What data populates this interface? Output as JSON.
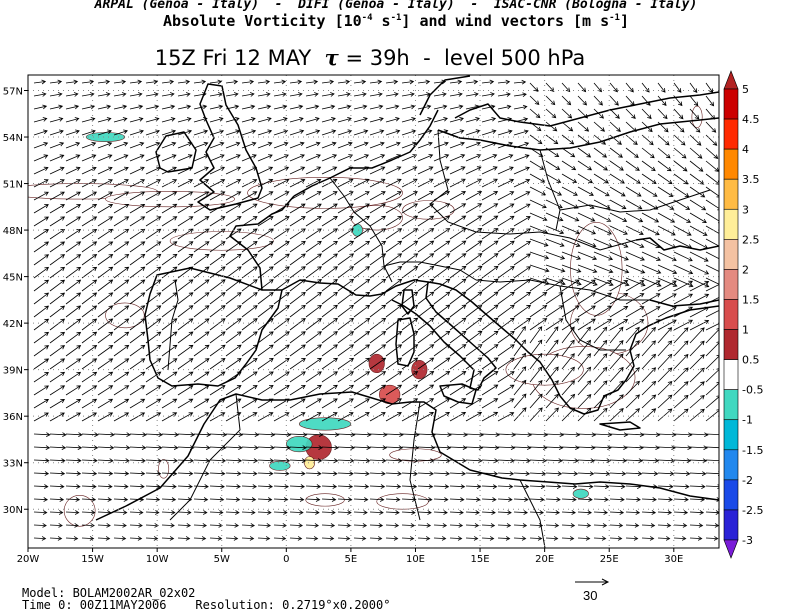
{
  "header": {
    "line1": "ARPAL (Genoa - Italy)  -  DIFI (Genoa - Italy)  -  ISAC-CNR (Bologna - Italy)",
    "line2_prefix": "Absolute Vorticity [10",
    "line2_exp1": "-4",
    "line2_mid1": " s",
    "line2_exp2": "-1",
    "line2_mid2": "] and wind vectors [m s",
    "line2_exp3": "-1",
    "line2_suffix": "]"
  },
  "title": {
    "prefix": "15Z Fri 12 MAY  ",
    "tau": "τ",
    "suffix": " = 39h  -  level 500 hPa"
  },
  "map": {
    "lat_labels": [
      "57N",
      "54N",
      "51N",
      "48N",
      "45N",
      "42N",
      "39N",
      "36N",
      "33N",
      "30N"
    ],
    "lat_values": [
      57,
      54,
      51,
      48,
      45,
      42,
      39,
      36,
      33,
      30
    ],
    "lon_labels": [
      "20W",
      "15W",
      "10W",
      "5W",
      "0",
      "5E",
      "10E",
      "15E",
      "20E",
      "25E",
      "30E"
    ],
    "lon_values": [
      -20,
      -15,
      -10,
      -5,
      0,
      5,
      10,
      15,
      20,
      25,
      30
    ],
    "extent": {
      "lon_min": -20,
      "lon_max": 33.5,
      "lat_min": 27.5,
      "lat_max": 58
    }
  },
  "colorbar": {
    "labels": [
      "5",
      "4.5",
      "4",
      "3.5",
      "3",
      "2.5",
      "2",
      "1.5",
      "1",
      "0.5",
      "-0.5",
      "-1",
      "-1.5",
      "-2",
      "-2.5",
      "-3"
    ],
    "colors": [
      "#b22222",
      "#cc0000",
      "#ff2a00",
      "#ff8800",
      "#ffbb44",
      "#ffee99",
      "#f4c2a2",
      "#e48a80",
      "#d84d4d",
      "#b0282f",
      "#ffffff",
      "#40d8c0",
      "#00b8d8",
      "#2288ee",
      "#1a4ae8",
      "#2a22d6",
      "#7a1cd8"
    ]
  },
  "vorticity_patches": [
    {
      "lon": -16,
      "lat": 50.5,
      "dlon": 6,
      "dlat": 0.5,
      "level": "0.5"
    },
    {
      "lon": -9,
      "lat": 50,
      "dlon": 5,
      "dlat": 0.5,
      "level": "0.5"
    },
    {
      "lon": -5,
      "lat": 47.3,
      "dlon": 4,
      "dlat": 0.6,
      "level": "0.5"
    },
    {
      "lon": 3,
      "lat": 50.4,
      "dlon": 6,
      "dlat": 1,
      "level": "0.5"
    },
    {
      "lon": 7,
      "lat": 48.8,
      "dlon": 2,
      "dlat": 0.8,
      "level": "0.5"
    },
    {
      "lon": 11,
      "lat": 49.3,
      "dlon": 2,
      "dlat": 0.6,
      "level": "0.5"
    },
    {
      "lon": 25,
      "lat": 42,
      "dlon": 3,
      "dlat": 2,
      "level": "0.5"
    },
    {
      "lon": 24,
      "lat": 45.5,
      "dlon": 2,
      "dlat": 3,
      "level": "0.5"
    },
    {
      "lon": 23,
      "lat": 38.5,
      "dlon": 4,
      "dlat": 2,
      "level": "0.5"
    },
    {
      "lon": 20,
      "lat": 39,
      "dlon": 3,
      "dlat": 1,
      "level": "0.5"
    },
    {
      "lon": -12.5,
      "lat": 42.5,
      "dlon": 1.5,
      "dlat": 0.8,
      "level": "0.5"
    },
    {
      "lon": 7,
      "lat": 39.4,
      "dlon": 0.6,
      "dlat": 0.6,
      "level": "1"
    },
    {
      "lon": 10.3,
      "lat": 39,
      "dlon": 0.6,
      "dlat": 0.6,
      "level": "1"
    },
    {
      "lon": 8,
      "lat": 37.4,
      "dlon": 0.8,
      "dlat": 0.6,
      "level": "1.5"
    },
    {
      "lon": 2.5,
      "lat": 34,
      "dlon": 1,
      "dlat": 0.8,
      "level": "1"
    },
    {
      "lon": 10,
      "lat": 33.5,
      "dlon": 2,
      "dlat": 0.4,
      "level": "0.5"
    },
    {
      "lon": -9.5,
      "lat": 32.6,
      "dlon": 0.4,
      "dlat": 0.6,
      "level": "0.5"
    },
    {
      "lon": -16,
      "lat": 29.9,
      "dlon": 1.2,
      "dlat": 1,
      "level": "0.5"
    },
    {
      "lon": 9,
      "lat": 30.5,
      "dlon": 2,
      "dlat": 0.5,
      "level": "0.5"
    },
    {
      "lon": 3,
      "lat": 30.6,
      "dlon": 1.5,
      "dlat": 0.4,
      "level": "0.5"
    },
    {
      "lon": 31.8,
      "lat": 55.3,
      "dlon": 0.4,
      "dlat": 0.7,
      "level": "0.5"
    },
    {
      "lon": -14,
      "lat": 54,
      "dlon": 1.5,
      "dlat": 0.3,
      "level": "-0.5"
    },
    {
      "lon": 3,
      "lat": 35.5,
      "dlon": 2,
      "dlat": 0.4,
      "level": "-0.5"
    },
    {
      "lon": 1,
      "lat": 34.2,
      "dlon": 1,
      "dlat": 0.5,
      "level": "-0.5"
    },
    {
      "lon": -0.5,
      "lat": 32.8,
      "dlon": 0.8,
      "dlat": 0.3,
      "level": "-0.5"
    },
    {
      "lon": 5.5,
      "lat": 48,
      "dlon": 0.4,
      "dlat": 0.4,
      "level": "-0.5"
    },
    {
      "lon": 22.8,
      "lat": 31,
      "dlon": 0.6,
      "dlat": 0.3,
      "level": "-0.5"
    },
    {
      "lon": 1.8,
      "lat": 33,
      "dlon": 0.4,
      "dlat": 0.4,
      "level": "3"
    }
  ],
  "footer": {
    "model": "Model: BOLAM2002AR_02x02",
    "time": "Time 0: 00Z11MAY2006    Resolution: 0.2719°x0.2000°",
    "ref_vector": "30"
  }
}
